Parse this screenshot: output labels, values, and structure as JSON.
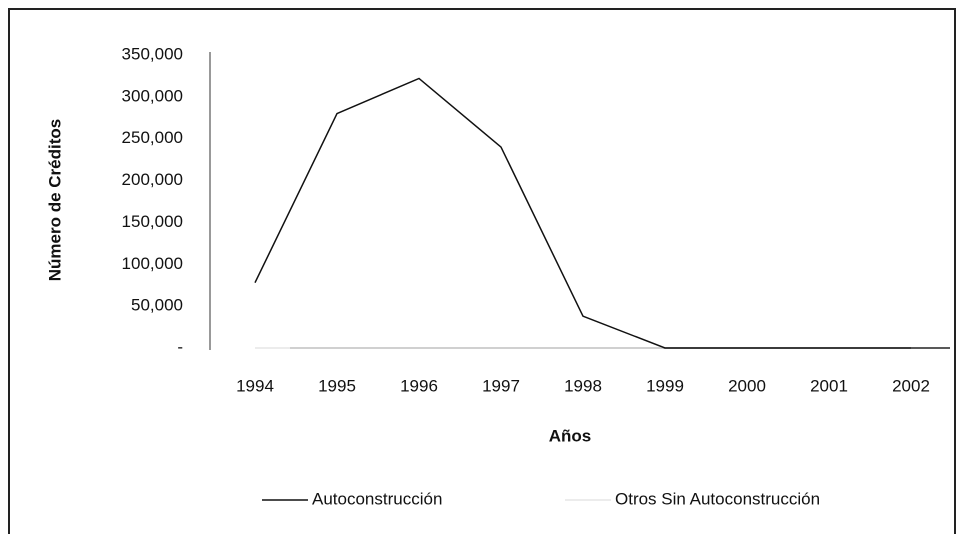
{
  "chart_data": {
    "type": "line",
    "x_label": "Años",
    "y_label": "Número de Créditos",
    "categories": [
      "1994",
      "1995",
      "1996",
      "1997",
      "1998",
      "1999",
      "2000",
      "2001",
      "2002"
    ],
    "series": [
      {
        "name": "Autoconstrucción",
        "color": "#111111",
        "values": [
          78000,
          280000,
          322000,
          240000,
          38000,
          0,
          0,
          0,
          0
        ]
      },
      {
        "name": "Otros Sin Autoconstrucción",
        "color": "#e6e6e6",
        "values": [
          0,
          0,
          0,
          0,
          0,
          0,
          0,
          0,
          0
        ]
      }
    ],
    "ylim": [
      0,
      350000
    ],
    "yticks": [
      {
        "value": 0,
        "label": "-"
      },
      {
        "value": 50000,
        "label": "50,000"
      },
      {
        "value": 100000,
        "label": "100,000"
      },
      {
        "value": 150000,
        "label": "150,000"
      },
      {
        "value": 200000,
        "label": "200,000"
      },
      {
        "value": 250000,
        "label": "250,000"
      },
      {
        "value": 300000,
        "label": "300,000"
      },
      {
        "value": 350000,
        "label": "350,000"
      }
    ],
    "legend": "bottom"
  }
}
